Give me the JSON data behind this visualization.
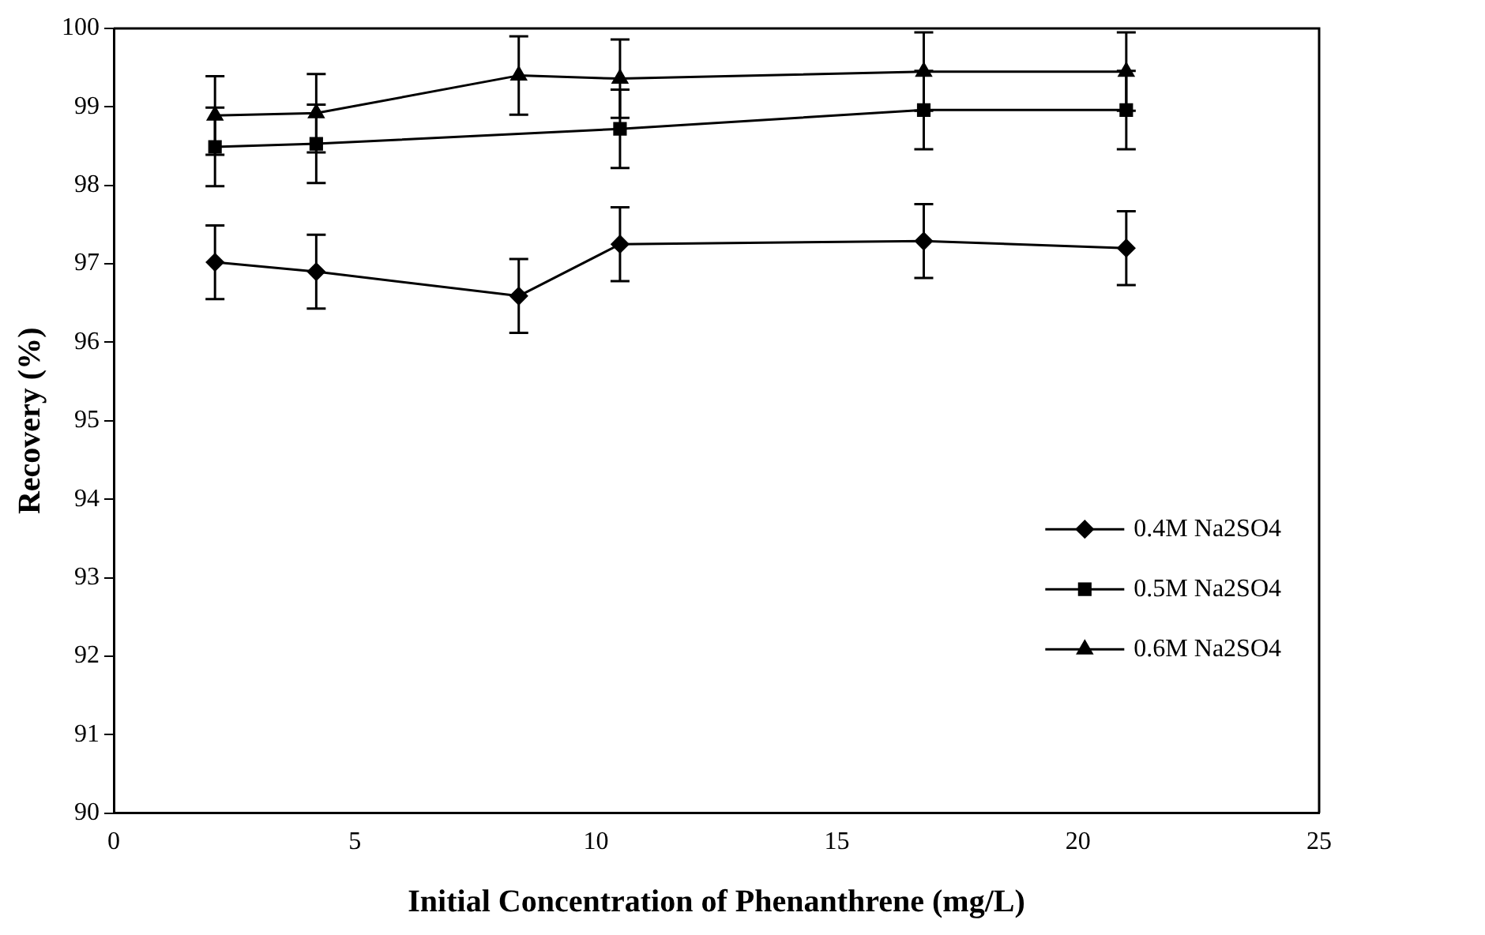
{
  "chart_data": {
    "type": "line",
    "xlabel": "Initial Concentration of Phenanthrene (mg/L)",
    "ylabel": "Recovery (%)",
    "x": [
      2.1,
      4.2,
      8.4,
      10.5,
      16.8,
      21
    ],
    "xlim": [
      0,
      25
    ],
    "xticks": [
      0,
      5,
      10,
      15,
      20,
      25
    ],
    "ylim": [
      90,
      100
    ],
    "yticks": [
      90,
      91,
      92,
      93,
      94,
      95,
      96,
      97,
      98,
      99,
      100
    ],
    "grid": false,
    "legend": "right",
    "line_style": "solid",
    "series": [
      {
        "name": "0.4M Na2SO4",
        "color": "#000000",
        "marker": "diamond",
        "values": [
          97.02,
          96.9,
          96.59,
          97.25,
          97.29,
          97.2
        ],
        "errors": [
          0.47,
          0.47,
          0.47,
          0.47,
          0.47,
          0.47
        ]
      },
      {
        "name": "0.5M Na2SO4",
        "color": "#000000",
        "marker": "square",
        "x": [
          2.1,
          4.2,
          10.5,
          16.8,
          21
        ],
        "values": [
          98.49,
          98.53,
          98.72,
          98.96,
          98.96
        ],
        "errors": [
          0.5,
          0.5,
          0.5,
          0.5,
          0.5
        ]
      },
      {
        "name": "0.6M Na2SO4",
        "color": "#000000",
        "marker": "triangle",
        "values": [
          98.89,
          98.92,
          99.4,
          99.36,
          99.45,
          99.45
        ],
        "errors": [
          0.5,
          0.5,
          0.5,
          0.5,
          0.5,
          0.5
        ]
      }
    ]
  }
}
